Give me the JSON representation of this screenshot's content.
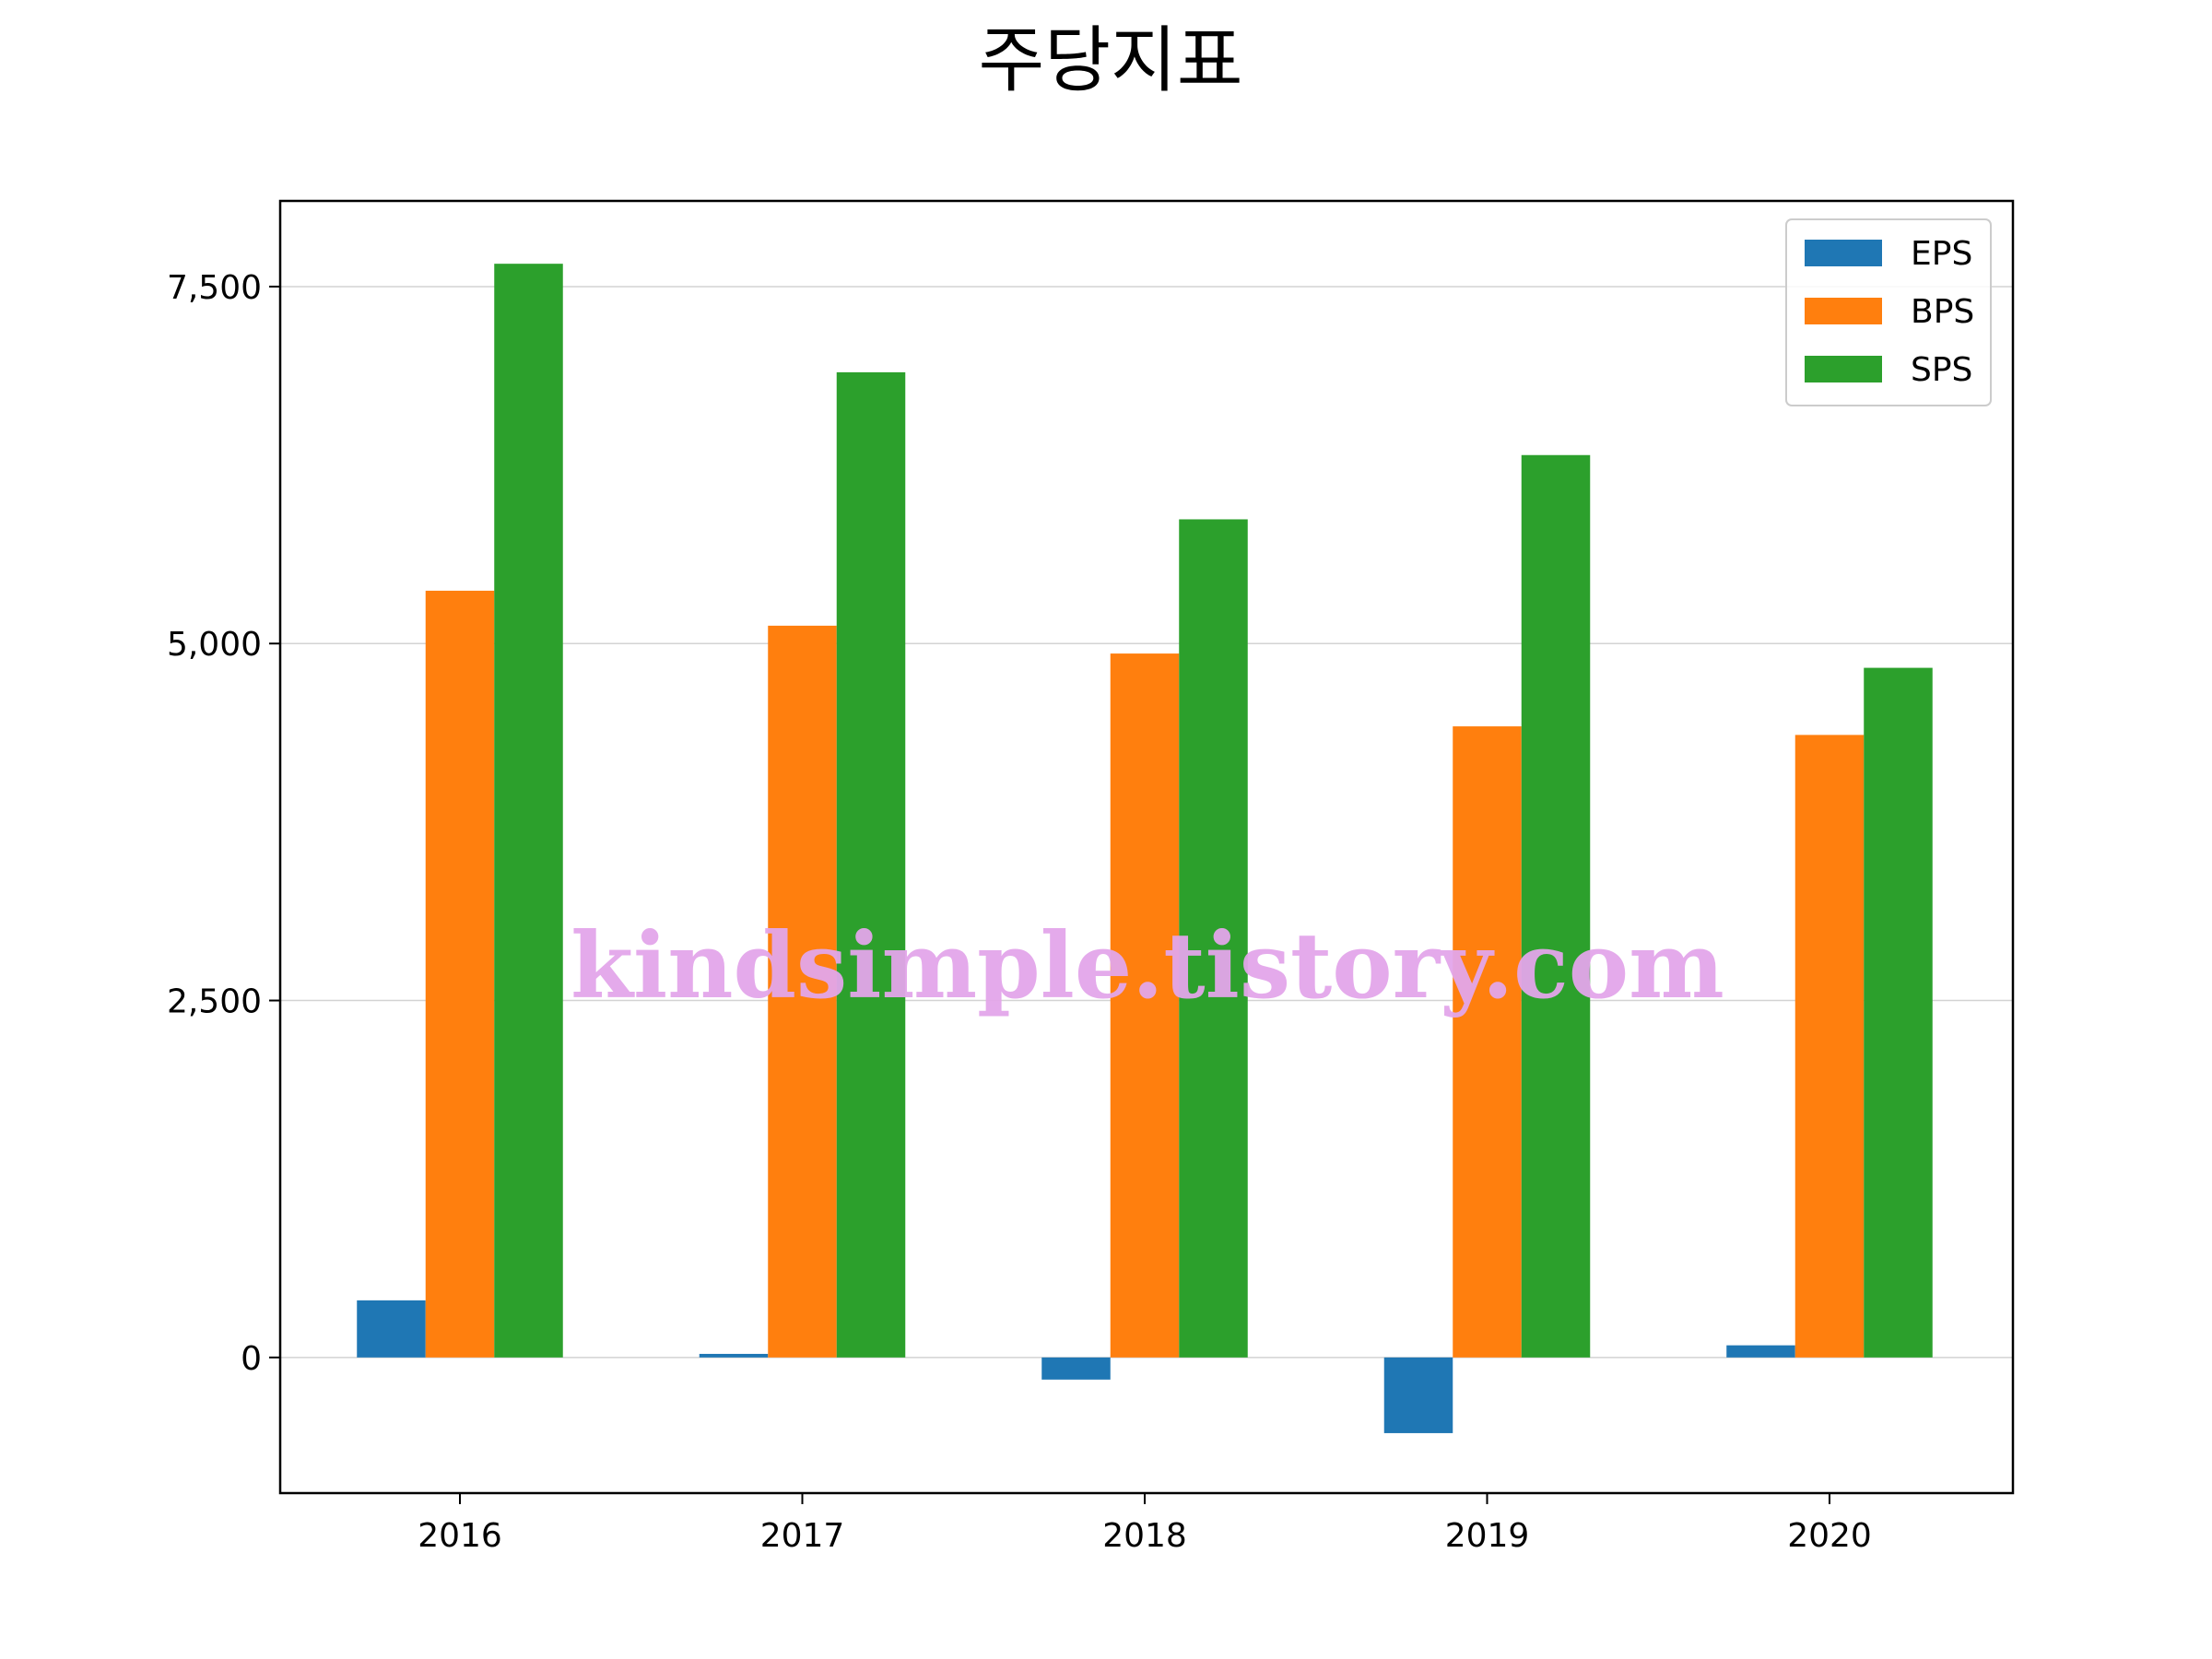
{
  "chart_data": {
    "type": "bar",
    "title": "주당지표",
    "xlabel": "",
    "ylabel": "",
    "categories": [
      "2016",
      "2017",
      "2018",
      "2019",
      "2020"
    ],
    "series": [
      {
        "name": "EPS",
        "color": "#1f77b4",
        "values": [
          400,
          25,
          -155,
          -530,
          85
        ]
      },
      {
        "name": "BPS",
        "color": "#ff7f0e",
        "values": [
          5370,
          5125,
          4930,
          4420,
          4360
        ]
      },
      {
        "name": "SPS",
        "color": "#2ca02c",
        "values": [
          7660,
          6900,
          5870,
          6320,
          4830
        ]
      }
    ],
    "ylim": [
      -950,
      8100
    ],
    "yticks": [
      0,
      2500,
      5000,
      7500
    ],
    "ytick_labels": [
      "0",
      "2,500",
      "5,000",
      "7,500"
    ],
    "grid": "y",
    "legend": "top-right"
  },
  "watermark": {
    "text": "kindsimple.tistory.com"
  }
}
